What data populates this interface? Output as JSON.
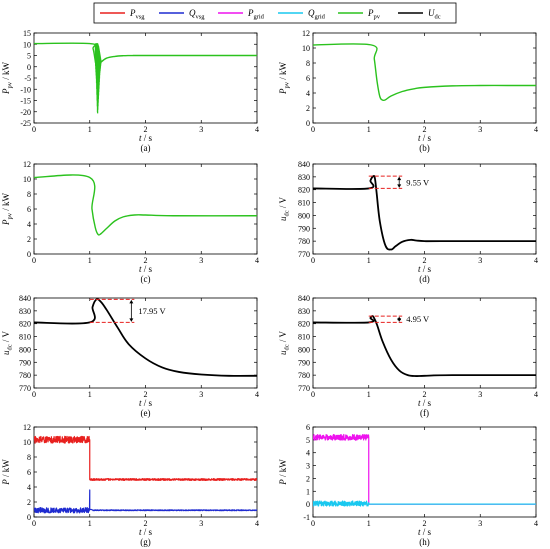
{
  "legend": {
    "entries": [
      {
        "label": "P",
        "sub": "vsg",
        "color": "#e8201e"
      },
      {
        "label": "Q",
        "sub": "vsg",
        "color": "#1f2bd0"
      },
      {
        "label": "P",
        "sub": "grid",
        "color": "#ee12ee"
      },
      {
        "label": "Q",
        "sub": "grid",
        "color": "#19c8ef"
      },
      {
        "label": "P",
        "sub": "pv",
        "color": "#2bc21e"
      },
      {
        "label": "U",
        "sub": "dc",
        "color": "#000000"
      }
    ]
  },
  "chart_data": [
    {
      "id": "a",
      "type": "line",
      "caption": "(a)",
      "xlabel": "t / s",
      "ylabel": {
        "main": "P",
        "sub": "pv",
        "unit": " / kW"
      },
      "xlim": [
        0,
        4
      ],
      "ylim": [
        -25,
        15
      ],
      "xticks": [
        "0",
        "1",
        "2",
        "3",
        "4"
      ],
      "yticks": [
        "-25",
        "-20",
        "-15",
        "-10",
        "-5",
        "0",
        "5",
        "10",
        "15"
      ],
      "series": [
        {
          "color": "#2bc21e",
          "width": 1.4,
          "x": [
            0,
            1.0,
            1.06,
            1.1,
            1.14,
            1.16,
            1.2,
            1.3,
            1.45,
            1.6,
            1.8,
            2.0,
            4.0
          ],
          "y": [
            10.3,
            10.3,
            8.0,
            2.5,
            -2.0,
            1.0,
            2.0,
            3.8,
            4.6,
            4.9,
            5.0,
            5.0,
            5.0
          ],
          "osc": {
            "x0": 1.1,
            "x1": 1.2,
            "upper": [
              10.3,
              10.5,
              10.5,
              9.0,
              6.0,
              3.0
            ],
            "lower": [
              2.5,
              -6.0,
              -21.5,
              -12.0,
              -3.0,
              1.5
            ]
          }
        }
      ]
    },
    {
      "id": "b",
      "type": "line",
      "caption": "(b)",
      "xlabel": "t / s",
      "ylabel": {
        "main": "P",
        "sub": "pv",
        "unit": " / kW"
      },
      "xlim": [
        0,
        4
      ],
      "ylim": [
        0,
        12
      ],
      "xticks": [
        "0",
        "1",
        "2",
        "3",
        "4"
      ],
      "yticks": [
        "0",
        "2",
        "4",
        "6",
        "8",
        "10",
        "12"
      ],
      "series": [
        {
          "color": "#2bc21e",
          "width": 1.4,
          "x": [
            0,
            1.05,
            1.1,
            1.15,
            1.2,
            1.25,
            1.3,
            1.4,
            1.6,
            1.8,
            2.0,
            2.5,
            3.0,
            3.5,
            4.0
          ],
          "y": [
            10.4,
            10.4,
            8.5,
            5.5,
            3.5,
            3.05,
            3.1,
            3.6,
            4.2,
            4.55,
            4.75,
            4.95,
            5.0,
            5.0,
            5.0
          ]
        }
      ]
    },
    {
      "id": "c",
      "type": "line",
      "caption": "(c)",
      "xlabel": "t / s",
      "ylabel": {
        "main": "P",
        "sub": "pv",
        "unit": " / kW"
      },
      "xlim": [
        0,
        4
      ],
      "ylim": [
        0,
        12
      ],
      "xticks": [
        "0",
        "1",
        "2",
        "3",
        "4"
      ],
      "yticks": [
        "0",
        "2",
        "4",
        "6",
        "8",
        "10",
        "12"
      ],
      "series": [
        {
          "color": "#2bc21e",
          "width": 1.4,
          "x": [
            0,
            1.0,
            1.04,
            1.1,
            1.15,
            1.2,
            1.3,
            1.45,
            1.6,
            1.8,
            2.0,
            2.5,
            4.0
          ],
          "y": [
            10.2,
            10.2,
            6.0,
            3.5,
            2.6,
            2.7,
            3.4,
            4.4,
            4.95,
            5.2,
            5.2,
            5.1,
            5.1
          ]
        }
      ]
    },
    {
      "id": "d",
      "type": "line",
      "caption": "(d)",
      "xlabel": "t / s",
      "ylabel": {
        "main": "u",
        "sub": "dc",
        "unit": " / V"
      },
      "xlim": [
        0,
        4
      ],
      "ylim": [
        770,
        840
      ],
      "xticks": [
        "0",
        "1",
        "2",
        "3",
        "4"
      ],
      "yticks": [
        "770",
        "780",
        "790",
        "800",
        "810",
        "820",
        "830",
        "840"
      ],
      "series": [
        {
          "color": "#000000",
          "width": 1.8,
          "x": [
            0,
            1.0,
            1.03,
            1.08,
            1.11,
            1.14,
            1.2,
            1.3,
            1.4,
            1.48,
            1.6,
            1.75,
            1.85,
            2.0,
            2.3,
            4.0
          ],
          "y": [
            821,
            821,
            827,
            830.5,
            829,
            818,
            795,
            776.5,
            773.5,
            776,
            779.5,
            781,
            780.5,
            780,
            780,
            780
          ]
        }
      ],
      "annotation": {
        "y_low": 821,
        "y_high": 830.55,
        "x_from": 1.0,
        "x_to": 1.6,
        "label": "9.55 V"
      }
    },
    {
      "id": "e",
      "type": "line",
      "caption": "(e)",
      "xlabel": "t / s",
      "ylabel": {
        "main": "u",
        "sub": "dc",
        "unit": " / V"
      },
      "xlim": [
        0,
        4
      ],
      "ylim": [
        770,
        840
      ],
      "xticks": [
        "0",
        "1",
        "2",
        "3",
        "4"
      ],
      "yticks": [
        "770",
        "780",
        "790",
        "800",
        "810",
        "820",
        "830",
        "840"
      ],
      "series": [
        {
          "color": "#000000",
          "width": 1.8,
          "x": [
            0,
            1.0,
            1.05,
            1.12,
            1.2,
            1.3,
            1.5,
            1.7,
            2.0,
            2.3,
            2.6,
            3.0,
            3.5,
            4.0
          ],
          "y": [
            821,
            821,
            833,
            838.95,
            837,
            831,
            817,
            804,
            793,
            786,
            782.5,
            780.5,
            779.5,
            779.5
          ]
        }
      ],
      "annotation": {
        "y_low": 821,
        "y_high": 838.95,
        "x_from": 1.0,
        "x_to": 1.8,
        "label": "17.95 V"
      }
    },
    {
      "id": "f",
      "type": "line",
      "caption": "(f)",
      "xlabel": "t / s",
      "ylabel": {
        "main": "u",
        "sub": "dc",
        "unit": " / V"
      },
      "xlim": [
        0,
        4
      ],
      "ylim": [
        770,
        840
      ],
      "xticks": [
        "0",
        "1",
        "2",
        "3",
        "4"
      ],
      "yticks": [
        "770",
        "780",
        "790",
        "800",
        "810",
        "820",
        "830",
        "840"
      ],
      "series": [
        {
          "color": "#000000",
          "width": 1.8,
          "x": [
            0,
            1.0,
            1.03,
            1.07,
            1.1,
            1.15,
            1.25,
            1.4,
            1.55,
            1.7,
            1.85,
            2.0,
            2.5,
            4.0
          ],
          "y": [
            821,
            821,
            824.5,
            825.95,
            824,
            819,
            806,
            792,
            783.5,
            780,
            779.3,
            779.5,
            780,
            780
          ]
        }
      ],
      "annotation": {
        "y_low": 821,
        "y_high": 825.95,
        "x_from": 1.0,
        "x_to": 1.6,
        "label": "4.95 V"
      }
    },
    {
      "id": "g",
      "type": "line",
      "caption": "(g)",
      "xlabel": "t / s",
      "ylabel": {
        "main": "P",
        "sub": "",
        "unit": " / kW"
      },
      "xlim": [
        0,
        4
      ],
      "ylim": [
        0,
        12
      ],
      "xticks": [
        "0",
        "1",
        "2",
        "3",
        "4"
      ],
      "yticks": [
        "0",
        "2",
        "4",
        "6",
        "8",
        "10",
        "12"
      ],
      "series": [
        {
          "color": "#e8201e",
          "width": 1.2,
          "x": [
            0,
            1.0,
            1.0,
            4.0
          ],
          "y": [
            10.3,
            10.3,
            5.0,
            5.0
          ],
          "noise": [
            {
              "x0": 0.0,
              "x1": 1.0,
              "amp": 0.45,
              "step": 0.003
            },
            {
              "x0": 1.0,
              "x1": 4.0,
              "amp": 0.12,
              "step": 0.006
            }
          ]
        },
        {
          "color": "#1f2bd0",
          "width": 1.2,
          "x": [
            0,
            0.995,
            1.0,
            1.0,
            1.03,
            1.06,
            4.0
          ],
          "y": [
            0.9,
            0.9,
            3.6,
            1.0,
            1.0,
            0.9,
            0.9
          ],
          "noise": [
            {
              "x0": 0.0,
              "x1": 0.99,
              "amp": 0.35,
              "step": 0.003
            },
            {
              "x0": 1.06,
              "x1": 4.0,
              "amp": 0.06,
              "step": 0.006
            }
          ]
        }
      ]
    },
    {
      "id": "h",
      "type": "line",
      "caption": "(h)",
      "xlabel": "t / s",
      "ylabel": {
        "main": "P",
        "sub": "",
        "unit": " / kW"
      },
      "xlim": [
        0,
        4
      ],
      "ylim": [
        -1,
        6
      ],
      "xticks": [
        "0",
        "1",
        "2",
        "3",
        "4"
      ],
      "yticks": [
        "-1",
        "0",
        "1",
        "2",
        "3",
        "4",
        "5",
        "6"
      ],
      "series": [
        {
          "color": "#ee12ee",
          "width": 1.2,
          "x": [
            0,
            1.0,
            1.0,
            4.0
          ],
          "y": [
            5.2,
            5.2,
            0.0,
            0.0
          ],
          "noise": [
            {
              "x0": 0.0,
              "x1": 1.0,
              "amp": 0.22,
              "step": 0.003
            }
          ]
        },
        {
          "color": "#19c8ef",
          "width": 1.2,
          "x": [
            0,
            1.0,
            1.0,
            4.0
          ],
          "y": [
            0.05,
            0.05,
            0.0,
            0.0
          ],
          "noise": [
            {
              "x0": 0.0,
              "x1": 1.0,
              "amp": 0.2,
              "step": 0.003
            }
          ]
        }
      ]
    }
  ]
}
